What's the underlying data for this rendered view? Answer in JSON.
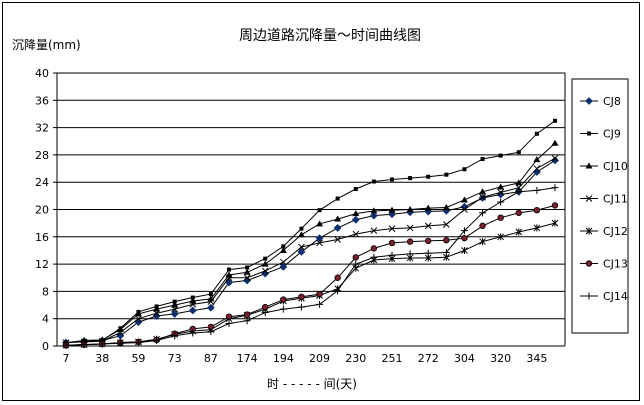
{
  "chart_data": {
    "type": "line",
    "title": "周边道路沉降量～时间曲线图",
    "ylabel": "沉降量(mm)",
    "xlabel": "时 - - - - - 间(天)",
    "ylim": [
      0,
      40
    ],
    "yticks": [
      0,
      4,
      8,
      12,
      16,
      20,
      24,
      28,
      32,
      36,
      40
    ],
    "xtick_labels": [
      "7",
      "38",
      "59",
      "73",
      "87",
      "174",
      "194",
      "209",
      "230",
      "251",
      "272",
      "304",
      "320",
      "345"
    ],
    "grid": "horizontal",
    "legend_position": "right",
    "series": [
      {
        "name": "CJ8",
        "marker": "diamond",
        "values": [
          0.5,
          0.7,
          0.8,
          1.5,
          3.5,
          4.4,
          4.7,
          5.2,
          5.6,
          9.3,
          9.6,
          10.6,
          11.6,
          13.8,
          15.8,
          17.3,
          18.5,
          19.1,
          19.3,
          19.6,
          19.7,
          19.8,
          20.4,
          21.7,
          22.2,
          22.6,
          25.5,
          27.2
        ]
      },
      {
        "name": "CJ9",
        "marker": "square",
        "values": [
          0.5,
          0.7,
          0.8,
          2.6,
          5.0,
          5.8,
          6.5,
          7.1,
          7.6,
          11.2,
          11.5,
          12.8,
          14.6,
          17.2,
          19.9,
          21.6,
          23.0,
          24.1,
          24.4,
          24.6,
          24.8,
          25.1,
          25.9,
          27.4,
          27.9,
          28.4,
          31.1,
          33.0
        ]
      },
      {
        "name": "CJ10",
        "marker": "triangle",
        "values": [
          0.5,
          0.8,
          0.9,
          2.4,
          4.7,
          5.4,
          6.0,
          6.6,
          6.9,
          10.4,
          10.8,
          12.0,
          14.0,
          16.3,
          17.9,
          18.6,
          19.4,
          19.8,
          19.9,
          20.0,
          20.2,
          20.3,
          21.4,
          22.6,
          23.3,
          23.9,
          27.3,
          29.7
        ]
      },
      {
        "name": "CJ11",
        "marker": "x",
        "values": [
          0.5,
          0.6,
          0.7,
          2.0,
          4.0,
          4.8,
          5.4,
          6.1,
          6.5,
          10.0,
          10.0,
          11.0,
          12.3,
          14.5,
          15.1,
          15.6,
          16.4,
          16.9,
          17.2,
          17.3,
          17.6,
          17.8,
          20.0,
          21.8,
          22.5,
          23.2,
          26.0,
          27.5
        ]
      },
      {
        "name": "CJ12",
        "marker": "asterisk",
        "values": [
          0.1,
          0.2,
          0.3,
          0.5,
          0.6,
          1.0,
          1.7,
          2.2,
          2.4,
          4.0,
          4.5,
          5.4,
          6.6,
          7.0,
          7.4,
          8.4,
          11.4,
          12.6,
          12.8,
          12.9,
          12.9,
          13.0,
          14.0,
          15.3,
          16.0,
          16.7,
          17.3,
          18.0
        ]
      },
      {
        "name": "CJ13",
        "marker": "circle",
        "values": [
          0.1,
          0.2,
          0.3,
          0.5,
          0.6,
          0.9,
          1.8,
          2.5,
          2.8,
          4.3,
          4.6,
          5.7,
          6.8,
          7.2,
          7.6,
          10.0,
          13.0,
          14.3,
          15.1,
          15.3,
          15.4,
          15.5,
          15.8,
          17.6,
          18.8,
          19.5,
          19.9,
          20.6
        ]
      },
      {
        "name": "CJ14",
        "marker": "plus",
        "values": [
          0.1,
          0.2,
          0.3,
          0.4,
          0.5,
          0.8,
          1.5,
          1.9,
          2.1,
          3.3,
          3.7,
          4.9,
          5.4,
          5.7,
          6.1,
          8.1,
          12.0,
          13.0,
          13.3,
          13.5,
          13.6,
          13.7,
          16.9,
          19.5,
          21.1,
          22.6,
          22.8,
          23.2
        ]
      }
    ]
  }
}
